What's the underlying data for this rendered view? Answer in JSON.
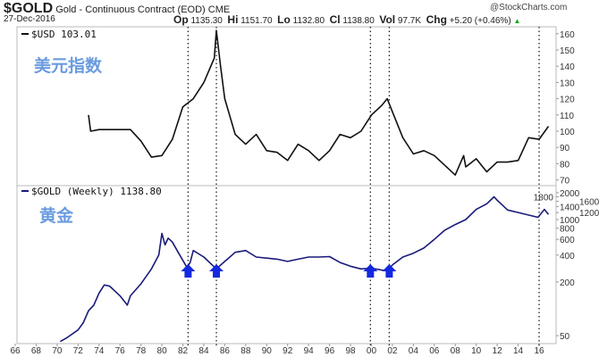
{
  "header": {
    "symbol": "$GOLD",
    "name": "Gold - Continuous Contract (EOD)",
    "exchange": "CME",
    "date": "27-Dec-2016",
    "brand": "@StockCharts.com",
    "op_label": "Op",
    "op": "1135.30",
    "hi_label": "Hi",
    "hi": "1151.70",
    "lo_label": "Lo",
    "lo": "1132.80",
    "cl_label": "Cl",
    "cl": "1138.80",
    "vol_label": "Vol",
    "vol": "97.7K",
    "chg_label": "Chg",
    "chg": "+5.20 (+0.46%)"
  },
  "colors": {
    "usd": "#111111",
    "gold": "#1a1a7a",
    "arrow": "#1428e0",
    "annot": "#6a9be0"
  },
  "chart_data": [
    {
      "type": "line",
      "title": "$USD 103.01",
      "annotation": "美元指数",
      "ylim": [
        70,
        165
      ],
      "yticks": [
        70,
        80,
        90,
        100,
        110,
        120,
        130,
        140,
        150,
        160
      ],
      "x": [
        1973,
        1973.2,
        1974,
        1975,
        1976,
        1977,
        1978,
        1979,
        1980,
        1981,
        1982,
        1983,
        1984,
        1985,
        1985.2,
        1985.6,
        1986,
        1987,
        1988,
        1989,
        1990,
        1991,
        1992,
        1993,
        1994,
        1995,
        1996,
        1997,
        1998,
        1999,
        2000,
        2001,
        2001.5,
        2002,
        2003,
        2004,
        2005,
        2006,
        2007,
        2008,
        2008.8,
        2009,
        2010,
        2011,
        2012,
        2013,
        2014,
        2015,
        2016,
        2016.9
      ],
      "values": [
        110,
        100,
        101,
        101,
        101,
        101,
        94,
        84,
        85,
        95,
        115,
        120,
        130,
        145,
        162,
        140,
        120,
        98,
        92,
        98,
        88,
        87,
        82,
        92,
        88,
        82,
        88,
        98,
        96,
        100,
        110,
        116,
        120,
        112,
        96,
        86,
        88,
        85,
        79,
        73,
        85,
        78,
        83,
        75,
        81,
        81,
        82,
        96,
        95,
        103
      ]
    },
    {
      "type": "line",
      "title": "$GOLD (Weekly) 1138.80",
      "annotation": "黄金",
      "scale": "log",
      "ylim": [
        35,
        2100
      ],
      "yticks": [
        50,
        200,
        400,
        600,
        800,
        1000,
        1200,
        1400,
        1600,
        1800,
        2000
      ],
      "x": [
        1970.3,
        1971,
        1972,
        1972.5,
        1973,
        1973.5,
        1974,
        1974.5,
        1975,
        1976,
        1976.7,
        1977,
        1978,
        1979,
        1979.7,
        1980,
        1980.3,
        1980.6,
        1981,
        1981.5,
        1982.4,
        1982.7,
        1983,
        1984,
        1985.2,
        1986,
        1987,
        1988,
        1989,
        1990,
        1991,
        1992,
        1993,
        1994,
        1995,
        1996,
        1997,
        1998,
        1999,
        2000,
        2001.5,
        2002,
        2003,
        2004,
        2005,
        2006,
        2007,
        2008,
        2009,
        2010,
        2011,
        2011.7,
        2012,
        2013,
        2014,
        2015.9,
        2016.5,
        2016.9
      ],
      "values": [
        43,
        48,
        58,
        70,
        95,
        110,
        150,
        185,
        180,
        140,
        110,
        140,
        190,
        280,
        400,
        700,
        520,
        620,
        560,
        440,
        290,
        330,
        450,
        380,
        280,
        340,
        430,
        450,
        380,
        370,
        360,
        340,
        360,
        380,
        380,
        385,
        330,
        300,
        280,
        285,
        265,
        310,
        380,
        420,
        480,
        600,
        760,
        880,
        1000,
        1300,
        1500,
        1800,
        1650,
        1280,
        1200,
        1060,
        1300,
        1140
      ]
    }
  ],
  "x_axis": {
    "ticks": [
      "66",
      "68",
      "70",
      "72",
      "74",
      "76",
      "78",
      "80",
      "82",
      "84",
      "86",
      "88",
      "90",
      "92",
      "94",
      "96",
      "98",
      "00",
      "02",
      "04",
      "06",
      "08",
      "10",
      "12",
      "14",
      "16"
    ]
  },
  "markers": {
    "vertical_lines": [
      1982.5,
      1985.2,
      1999.9,
      2001.7,
      2016.0
    ],
    "arrows": [
      1982.5,
      1985.2,
      1999.9,
      2001.7
    ]
  }
}
